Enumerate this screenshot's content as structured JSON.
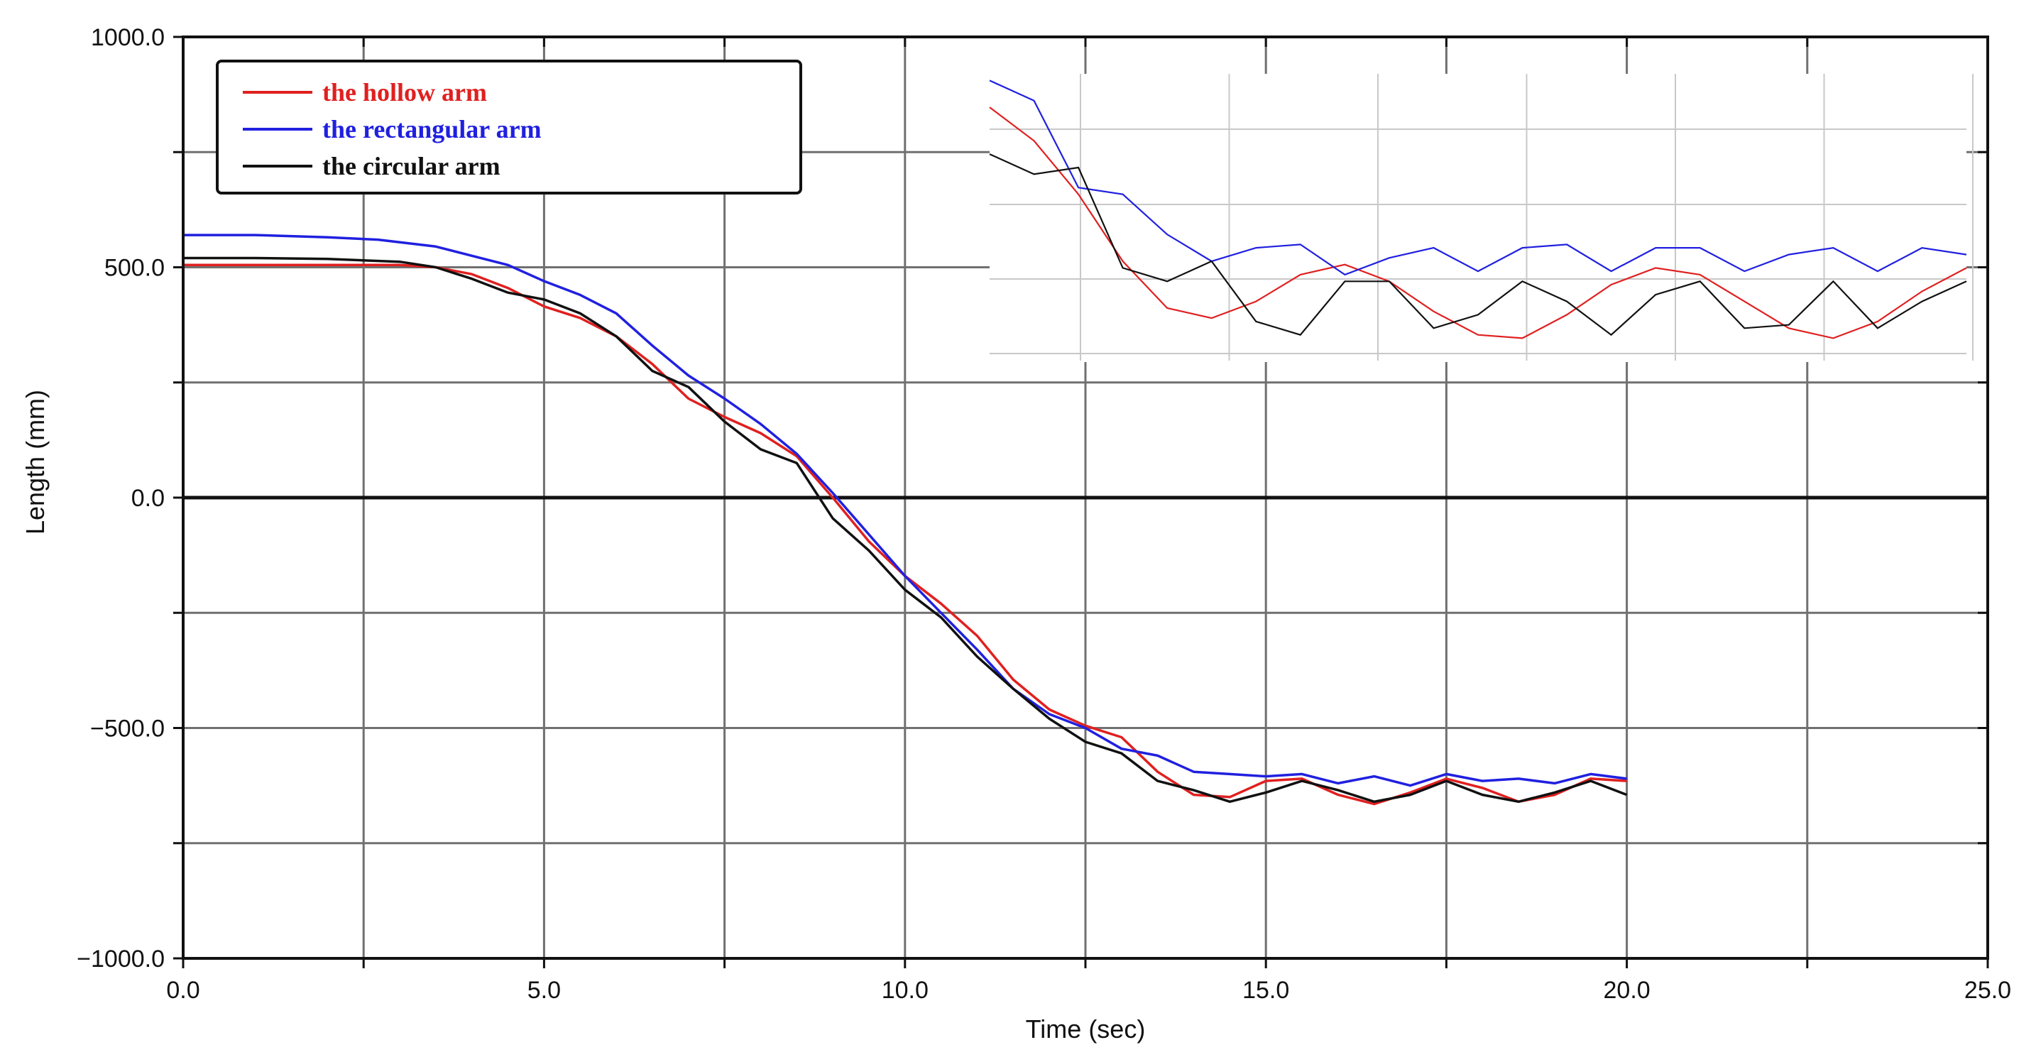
{
  "chart_data": {
    "type": "line",
    "title": "",
    "xlabel": "Time (sec)",
    "ylabel": "Length (mm)",
    "xlim": [
      0,
      25
    ],
    "ylim": [
      -1000,
      1000
    ],
    "x_ticks": [
      0,
      2.5,
      5,
      7.5,
      10,
      12.5,
      15,
      17.5,
      20,
      22.5,
      25
    ],
    "x_tick_labels": [
      "0.0",
      "",
      "5.0",
      "",
      "10.0",
      "",
      "15.0",
      "",
      "20.0",
      "",
      "25.0"
    ],
    "y_ticks": [
      -1000,
      -750,
      -500,
      -250,
      0,
      250,
      500,
      750,
      1000
    ],
    "y_tick_labels": [
      "−1000.0",
      "",
      "−500.0",
      "",
      "0.0",
      "",
      "500.0",
      "",
      "1000.0"
    ],
    "grid": true,
    "legend_position": "top-left",
    "series": [
      {
        "name": "the hollow arm",
        "color": "#e02020",
        "x": [
          0,
          1,
          2,
          3,
          3.5,
          4,
          4.5,
          5,
          5.5,
          6,
          6.5,
          7,
          7.5,
          8,
          8.5,
          9,
          9.5,
          10,
          10.5,
          11,
          11.5,
          12,
          12.5,
          13,
          13.5,
          14,
          14.5,
          15,
          15.5,
          16,
          16.5,
          17,
          17.5,
          18,
          18.5,
          19,
          19.5,
          20
        ],
        "y": [
          505,
          505,
          505,
          505,
          500,
          485,
          455,
          415,
          390,
          350,
          290,
          215,
          175,
          140,
          90,
          0,
          -95,
          -170,
          -230,
          -300,
          -395,
          -460,
          -495,
          -520,
          -595,
          -645,
          -650,
          -615,
          -610,
          -645,
          -665,
          -640,
          -610,
          -630,
          -660,
          -645,
          -610,
          -615
        ]
      },
      {
        "name": "the rectangular arm",
        "color": "#2020e0",
        "x": [
          0,
          1,
          2,
          2.7,
          3.5,
          4,
          4.5,
          5,
          5.5,
          6,
          6.5,
          7,
          7.5,
          8,
          8.5,
          9,
          9.5,
          10,
          10.5,
          11,
          11.5,
          12,
          12.5,
          13,
          13.5,
          14,
          14.5,
          15,
          15.5,
          16,
          16.5,
          17,
          17.5,
          18,
          18.5,
          19,
          19.5,
          20
        ],
        "y": [
          570,
          570,
          565,
          560,
          545,
          525,
          505,
          470,
          440,
          400,
          330,
          265,
          215,
          160,
          95,
          10,
          -80,
          -170,
          -250,
          -330,
          -415,
          -470,
          -500,
          -545,
          -560,
          -595,
          -600,
          -605,
          -600,
          -620,
          -605,
          -625,
          -600,
          -615,
          -610,
          -620,
          -600,
          -610
        ]
      },
      {
        "name": "the circular arm",
        "color": "#111111",
        "x": [
          0,
          1,
          2,
          3,
          3.5,
          4,
          4.5,
          5,
          5.5,
          6,
          6.5,
          7,
          7.5,
          8,
          8.5,
          9,
          9.5,
          10,
          10.5,
          11,
          11.5,
          12,
          12.5,
          13,
          13.5,
          14,
          14.5,
          15,
          15.5,
          16,
          16.5,
          17,
          17.5,
          18,
          18.5,
          19,
          19.5,
          20
        ],
        "y": [
          520,
          520,
          518,
          512,
          500,
          475,
          445,
          430,
          400,
          350,
          275,
          240,
          165,
          105,
          75,
          -45,
          -115,
          -200,
          -260,
          -345,
          -415,
          -480,
          -530,
          -555,
          -615,
          -635,
          -660,
          -640,
          -615,
          -635,
          -660,
          -645,
          -615,
          -645,
          -660,
          -640,
          -615,
          -645
        ]
      }
    ],
    "inset": {
      "description": "zoomed view of steady-state oscillation",
      "series": [
        {
          "name": "the hollow arm",
          "color": "#e02020",
          "y": [
            750,
            700,
            620,
            520,
            450,
            435,
            460,
            500,
            515,
            490,
            445,
            410,
            405,
            440,
            485,
            510,
            500,
            460,
            420,
            405,
            430,
            475,
            510
          ]
        },
        {
          "name": "the rectangular arm",
          "color": "#2020e0",
          "y": [
            790,
            760,
            630,
            620,
            560,
            520,
            540,
            545,
            500,
            525,
            540,
            505,
            540,
            545,
            505,
            540,
            540,
            505,
            530,
            540,
            505,
            540,
            530
          ]
        },
        {
          "name": "the circular arm",
          "color": "#111111",
          "y": [
            680,
            650,
            660,
            510,
            490,
            520,
            430,
            410,
            490,
            490,
            420,
            440,
            490,
            460,
            410,
            470,
            490,
            420,
            425,
            490,
            420,
            460,
            490
          ]
        }
      ]
    }
  }
}
